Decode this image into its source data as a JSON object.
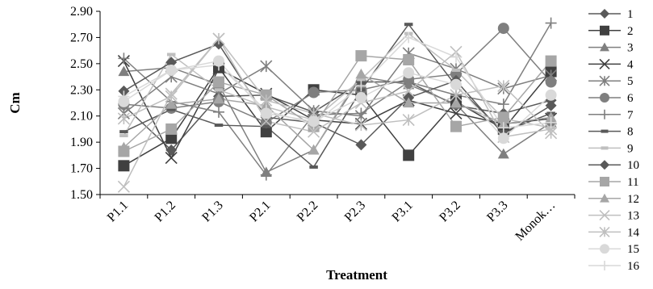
{
  "chart_data": {
    "type": "line",
    "title": "",
    "xlabel": "Treatment",
    "ylabel": "Cm",
    "ylim": [
      1.5,
      2.9
    ],
    "yticks": [
      "1.50",
      "1.70",
      "1.90",
      "2.10",
      "2.30",
      "2.50",
      "2.70",
      "2.90"
    ],
    "categories": [
      "P1.1",
      "P1.2",
      "P1.3",
      "P2.1",
      "P2.2",
      "P2.3",
      "P3.1",
      "P3.2",
      "P3.3",
      "Monok…"
    ],
    "grid": false,
    "legend_position": "right",
    "series": [
      {
        "name": "1",
        "marker": "diamond",
        "color": "#595959",
        "values": [
          2.18,
          1.84,
          2.25,
          2.26,
          2.13,
          2.36,
          2.36,
          2.18,
          2.12,
          2.22
        ]
      },
      {
        "name": "2",
        "marker": "square",
        "color": "#404040",
        "values": [
          1.72,
          1.93,
          2.47,
          1.98,
          2.3,
          2.26,
          1.8,
          2.21,
          2.0,
          2.44
        ]
      },
      {
        "name": "3",
        "marker": "triangle",
        "color": "#7f7f7f",
        "values": [
          2.44,
          2.47,
          2.34,
          1.67,
          1.84,
          2.4,
          2.34,
          2.19,
          1.81,
          2.05
        ]
      },
      {
        "name": "4",
        "marker": "x",
        "color": "#404040",
        "values": [
          2.52,
          1.78,
          2.46,
          2.27,
          2.07,
          2.04,
          2.22,
          2.12,
          2.04,
          2.08
        ]
      },
      {
        "name": "5",
        "marker": "asterisk",
        "color": "#7f7f7f",
        "values": [
          2.12,
          2.4,
          2.27,
          2.48,
          2.14,
          2.1,
          2.58,
          2.46,
          2.31,
          2.41
        ]
      },
      {
        "name": "6",
        "marker": "circle",
        "color": "#7f7f7f",
        "values": [
          2.19,
          2.16,
          2.21,
          2.05,
          2.28,
          2.3,
          2.38,
          2.42,
          2.77,
          2.36
        ]
      },
      {
        "name": "7",
        "marker": "plus",
        "color": "#7f7f7f",
        "values": [
          2.54,
          2.21,
          2.13,
          1.65,
          2.11,
          2.12,
          2.36,
          2.26,
          2.19,
          2.81
        ]
      },
      {
        "name": "8",
        "marker": "dash",
        "color": "#595959",
        "values": [
          1.98,
          2.15,
          2.03,
          2.02,
          1.71,
          2.3,
          2.8,
          2.33,
          1.98,
          2.12
        ]
      },
      {
        "name": "9",
        "marker": "dash",
        "color": "#bfbfbf",
        "values": [
          1.95,
          2.57,
          2.3,
          2.17,
          2.07,
          2.38,
          2.73,
          2.45,
          2.08,
          2.01
        ]
      },
      {
        "name": "10",
        "marker": "diamond",
        "color": "#595959",
        "values": [
          2.29,
          2.51,
          2.65,
          2.09,
          2.05,
          1.88,
          2.24,
          2.37,
          1.96,
          2.18
        ]
      },
      {
        "name": "11",
        "marker": "square",
        "color": "#a6a6a6",
        "values": [
          1.83,
          2.0,
          2.36,
          2.26,
          2.02,
          2.56,
          2.53,
          2.02,
          2.09,
          2.52
        ]
      },
      {
        "name": "12",
        "marker": "triangle",
        "color": "#a6a6a6",
        "values": [
          1.86,
          2.19,
          2.23,
          2.18,
          1.84,
          2.42,
          2.2,
          2.2,
          2.04,
          2.09
        ]
      },
      {
        "name": "13",
        "marker": "x",
        "color": "#bfbfbf",
        "values": [
          1.56,
          2.27,
          2.69,
          2.06,
          1.98,
          2.2,
          2.29,
          2.59,
          1.94,
          2.0
        ]
      },
      {
        "name": "14",
        "marker": "asterisk",
        "color": "#bfbfbf",
        "values": [
          2.08,
          2.25,
          2.69,
          2.22,
          2.12,
          2.03,
          2.07,
          2.26,
          2.33,
          1.97
        ]
      },
      {
        "name": "15",
        "marker": "circle",
        "color": "#d9d9d9",
        "values": [
          2.21,
          2.45,
          2.52,
          2.12,
          2.06,
          2.24,
          2.43,
          2.34,
          1.93,
          2.26
        ]
      },
      {
        "name": "16",
        "marker": "plus",
        "color": "#d9d9d9",
        "values": [
          2.25,
          2.45,
          2.49,
          2.14,
          2.04,
          2.33,
          2.7,
          2.55,
          2.01,
          2.05
        ]
      }
    ]
  }
}
